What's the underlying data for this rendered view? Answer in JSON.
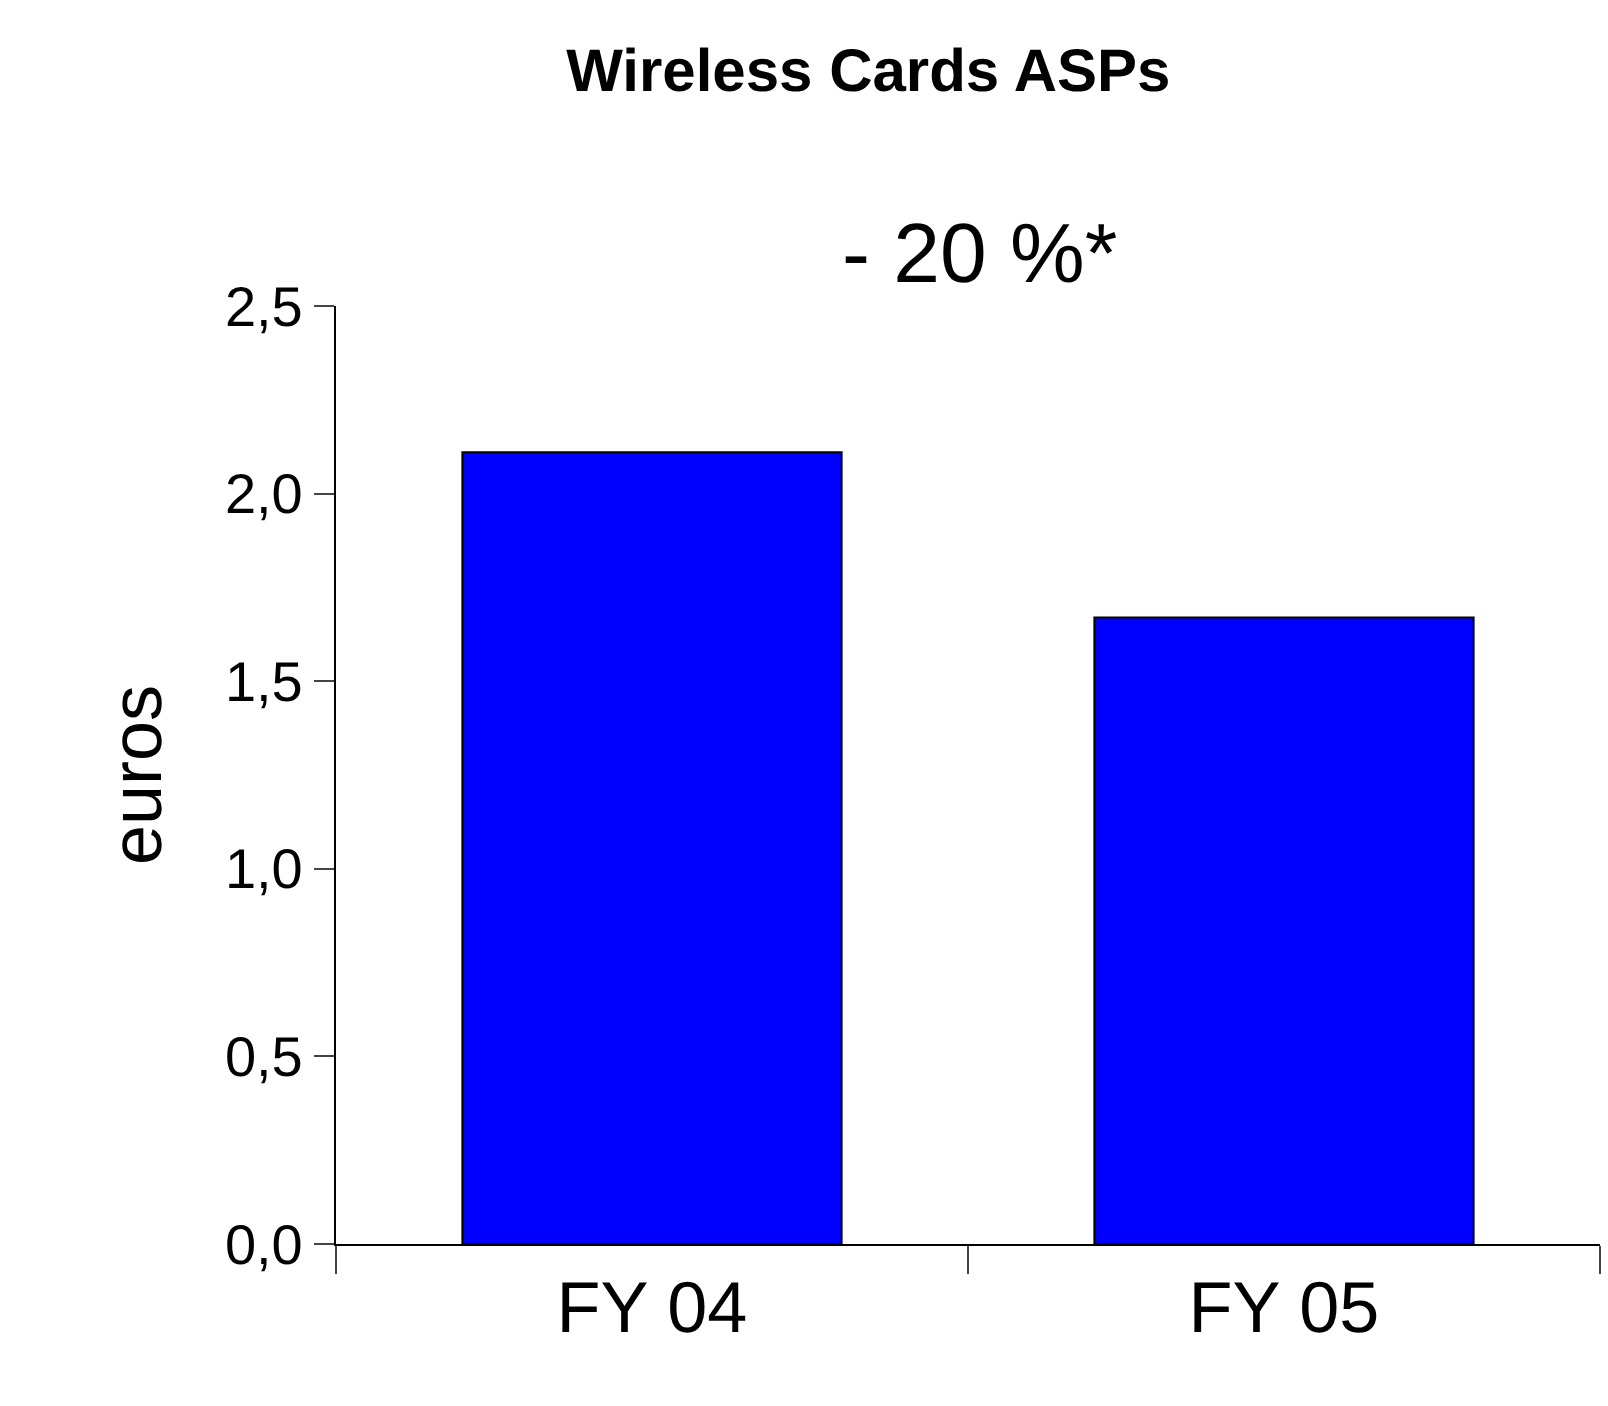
{
  "chart_data": {
    "type": "bar",
    "title": "Wireless Cards ASPs",
    "annotations": [
      "- 20 %*"
    ],
    "ylabel": "euros",
    "categories": [
      "FY 04",
      "FY 05"
    ],
    "values": [
      2.11,
      1.67
    ],
    "color": "#0000ff",
    "ylim": [
      0,
      2.5
    ],
    "yticks": [
      {
        "value": 0,
        "label": "0,0"
      },
      {
        "value": 0.5,
        "label": "0,5"
      },
      {
        "value": 1,
        "label": "1,0"
      },
      {
        "value": 1.5,
        "label": "1,5"
      },
      {
        "value": 2,
        "label": "2,0"
      },
      {
        "value": 2.5,
        "label": "2,5"
      }
    ],
    "grid": false
  }
}
